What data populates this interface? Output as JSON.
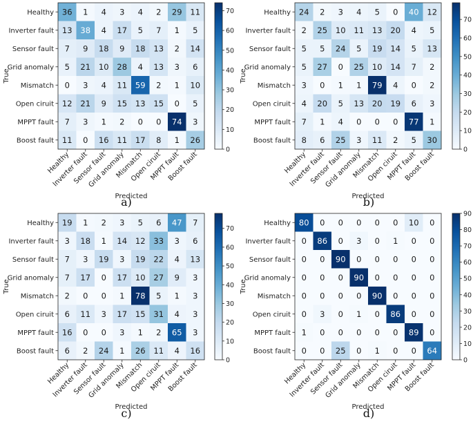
{
  "chart_data": [
    {
      "type": "heatmap",
      "panel_label": "a)",
      "xlabel": "Predicted",
      "ylabel": "True",
      "categories": [
        "Healthy",
        "Inverter fault",
        "Sensor fault",
        "Grid anomaly",
        "Mismatch",
        "Open ciruit",
        "MPPT fault",
        "Boost fault"
      ],
      "values": [
        [
          36,
          1,
          4,
          3,
          4,
          2,
          29,
          11
        ],
        [
          13,
          38,
          4,
          17,
          5,
          7,
          1,
          5
        ],
        [
          7,
          9,
          18,
          9,
          18,
          13,
          2,
          14
        ],
        [
          5,
          21,
          10,
          28,
          4,
          13,
          3,
          6
        ],
        [
          0,
          3,
          4,
          11,
          59,
          2,
          1,
          10
        ],
        [
          12,
          21,
          9,
          15,
          13,
          15,
          0,
          5
        ],
        [
          7,
          3,
          1,
          2,
          0,
          0,
          74,
          3
        ],
        [
          11,
          0,
          16,
          11,
          17,
          8,
          1,
          26
        ]
      ],
      "colorbar": {
        "min": 0,
        "max": 74,
        "ticks": [
          0,
          10,
          20,
          30,
          40,
          50,
          60,
          70
        ]
      }
    },
    {
      "type": "heatmap",
      "panel_label": "b)",
      "xlabel": "Predicted",
      "ylabel": "True",
      "categories": [
        "Healthy",
        "Inverter fault",
        "Sensor fault",
        "Grid anomaly",
        "Mismatch",
        "Open ciruit",
        "MPPT fault",
        "Boost fault"
      ],
      "values": [
        [
          24,
          2,
          3,
          4,
          5,
          0,
          40,
          12
        ],
        [
          2,
          25,
          10,
          11,
          13,
          20,
          4,
          5
        ],
        [
          5,
          5,
          24,
          5,
          19,
          14,
          5,
          13
        ],
        [
          5,
          27,
          0,
          25,
          10,
          14,
          7,
          2
        ],
        [
          3,
          0,
          1,
          1,
          79,
          4,
          0,
          2
        ],
        [
          4,
          20,
          5,
          13,
          20,
          19,
          6,
          3
        ],
        [
          7,
          1,
          4,
          0,
          0,
          0,
          77,
          1
        ],
        [
          8,
          6,
          25,
          3,
          11,
          2,
          5,
          30
        ]
      ],
      "colorbar": {
        "min": 0,
        "max": 79,
        "ticks": [
          0,
          10,
          20,
          30,
          40,
          50,
          60,
          70
        ]
      }
    },
    {
      "type": "heatmap",
      "panel_label": "c)",
      "xlabel": "Predicted",
      "ylabel": "True",
      "categories": [
        "Healthy",
        "Inverter fault",
        "Sensor fault",
        "Grid anomaly",
        "Mismatch",
        "Open ciruit",
        "MPPT fault",
        "Boost fault"
      ],
      "values": [
        [
          19,
          1,
          2,
          3,
          5,
          6,
          47,
          7
        ],
        [
          3,
          18,
          1,
          14,
          12,
          33,
          3,
          6
        ],
        [
          7,
          3,
          19,
          3,
          19,
          22,
          4,
          13
        ],
        [
          7,
          17,
          0,
          17,
          10,
          27,
          9,
          3
        ],
        [
          2,
          0,
          0,
          1,
          78,
          5,
          1,
          3
        ],
        [
          6,
          11,
          3,
          17,
          15,
          31,
          4,
          3
        ],
        [
          16,
          0,
          0,
          3,
          1,
          2,
          65,
          3
        ],
        [
          6,
          2,
          24,
          1,
          26,
          11,
          4,
          16
        ]
      ],
      "colorbar": {
        "min": 0,
        "max": 78,
        "ticks": [
          0,
          10,
          20,
          30,
          40,
          50,
          60,
          70
        ]
      }
    },
    {
      "type": "heatmap",
      "panel_label": "d)",
      "xlabel": "Predicted",
      "ylabel": "True",
      "categories": [
        "Healthy",
        "Inverter fault",
        "Sensor fault",
        "Grid anomaly",
        "Mismatch",
        "Open ciruit",
        "MPPT fault",
        "Boost fault"
      ],
      "values": [
        [
          80,
          0,
          0,
          0,
          0,
          0,
          10,
          0
        ],
        [
          0,
          86,
          0,
          3,
          0,
          1,
          0,
          0
        ],
        [
          0,
          0,
          90,
          0,
          0,
          0,
          0,
          0
        ],
        [
          0,
          0,
          0,
          90,
          0,
          0,
          0,
          0
        ],
        [
          0,
          0,
          0,
          0,
          90,
          0,
          0,
          0
        ],
        [
          0,
          3,
          0,
          1,
          0,
          86,
          0,
          0
        ],
        [
          1,
          0,
          0,
          0,
          0,
          0,
          89,
          0
        ],
        [
          0,
          0,
          25,
          0,
          1,
          0,
          0,
          64
        ]
      ],
      "colorbar": {
        "min": 0,
        "max": 90,
        "ticks": [
          0,
          10,
          20,
          30,
          40,
          50,
          60,
          70,
          80,
          90
        ]
      }
    }
  ]
}
